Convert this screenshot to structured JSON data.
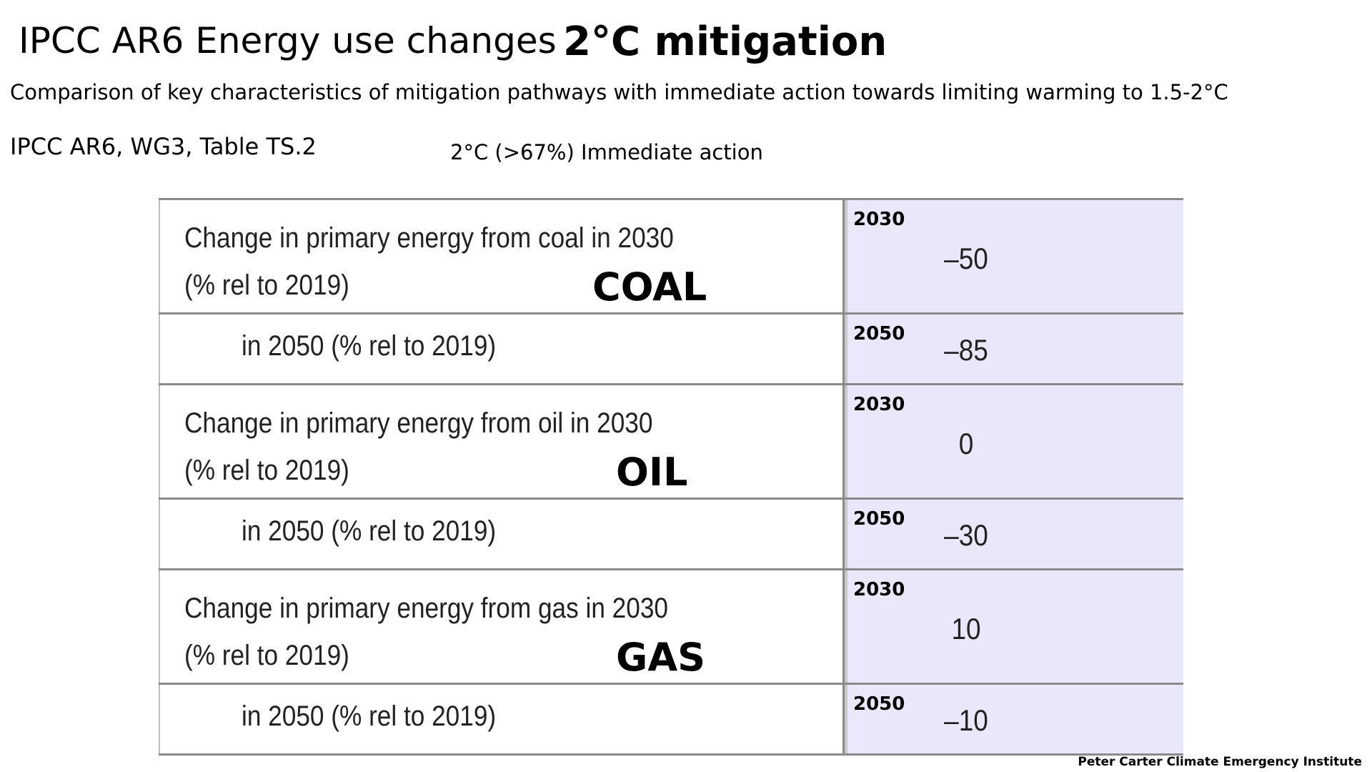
{
  "header": {
    "title": "IPCC AR6 Energy use changes",
    "title_emphasis": "2°C mitigation",
    "subtitle": "Comparison of key characteristics of mitigation pathways with immediate action towards limiting warming to 1.5-2°C",
    "source": "IPCC AR6, WG3, Table TS.2",
    "scenario": "2°C (>67%) Immediate action"
  },
  "table": {
    "rows": [
      {
        "label_line1": "Change in primary energy from coal in 2030",
        "label_line2": "(% rel to 2019)",
        "fuel": "COAL",
        "year": "2030",
        "value": "–50"
      },
      {
        "label_line1": "in 2050 (% rel to 2019)",
        "year": "2050",
        "value": "–85"
      },
      {
        "label_line1": "Change in primary energy from oil in 2030",
        "label_line2": "(% rel to 2019)",
        "fuel": "OIL",
        "year": "2030",
        "value": "0"
      },
      {
        "label_line1": "in 2050 (% rel to 2019)",
        "year": "2050",
        "value": "–30"
      },
      {
        "label_line1": "Change in primary energy from gas in 2030",
        "label_line2": "(% rel to 2019)",
        "fuel": "GAS",
        "year": "2030",
        "value": "10"
      },
      {
        "label_line1": "in 2050 (% rel to 2019)",
        "year": "2050",
        "value": "–10"
      }
    ]
  },
  "footer": {
    "credit": "Peter Carter Climate Emergency Institute"
  }
}
